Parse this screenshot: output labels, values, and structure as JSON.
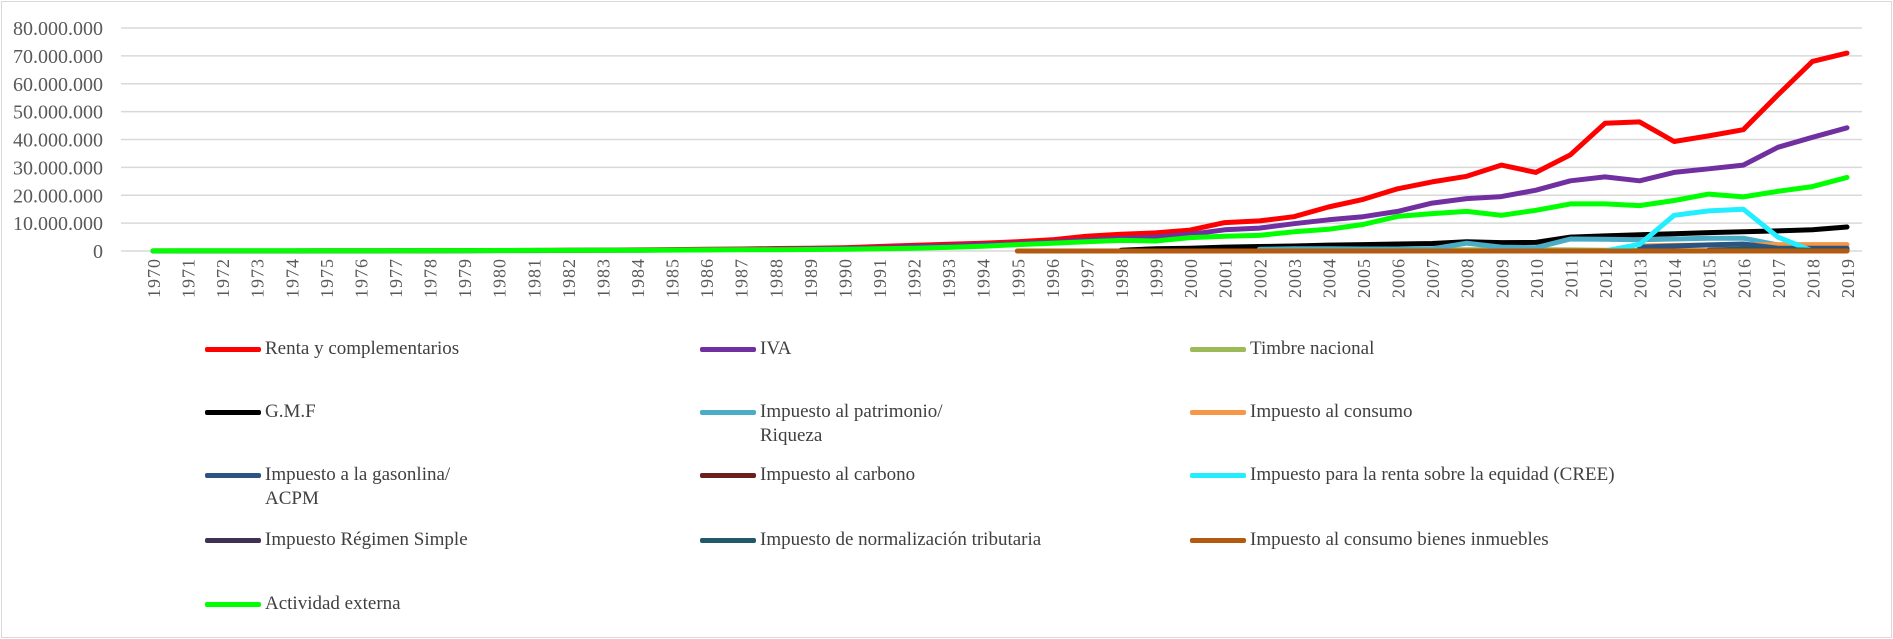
{
  "chart_data": {
    "type": "line",
    "title": "",
    "xlabel": "",
    "ylabel": "",
    "x_start": 1970,
    "x_end": 2019,
    "ylim": [
      0,
      80000000
    ],
    "y_ticks": [
      "0",
      "10.000.000",
      "20.000.000",
      "30.000.000",
      "40.000.000",
      "50.000.000",
      "60.000.000",
      "70.000.000",
      "80.000.000"
    ],
    "grid": "horizontal",
    "legend_position": "bottom",
    "series": [
      {
        "name": "Renta y complementarios",
        "color": "#ff0000",
        "start_year": 1970,
        "values": [
          20000,
          25000,
          30000,
          40000,
          50000,
          60000,
          80000,
          100000,
          120000,
          150000,
          190000,
          230000,
          280000,
          330000,
          400000,
          500000,
          600000,
          700000,
          900000,
          1000000,
          1200000,
          1600000,
          2000000,
          2400000,
          2800000,
          3300000,
          4000000,
          5300000,
          6000000,
          6500000,
          7500000,
          10200000,
          10800000,
          12300000,
          15800000,
          18500000,
          22300000,
          24800000,
          26800000,
          30800000,
          28200000,
          34500000,
          45800000,
          46300000,
          39300000,
          41300000,
          43500000,
          56000000,
          68000000,
          71000000
        ]
      },
      {
        "name": "IVA",
        "color": "#7030a0",
        "start_year": 1970,
        "values": [
          0,
          0,
          0,
          0,
          0,
          20000,
          40000,
          60000,
          80000,
          100000,
          130000,
          160000,
          200000,
          250000,
          300000,
          380000,
          470000,
          560000,
          680000,
          800000,
          900000,
          1200000,
          1500000,
          1900000,
          2300000,
          2700000,
          3200000,
          3900000,
          4500000,
          5000000,
          6000000,
          7600000,
          8200000,
          9800000,
          11200000,
          12300000,
          14200000,
          17200000,
          18800000,
          19500000,
          21800000,
          25200000,
          26600000,
          25200000,
          28200000,
          29500000,
          30800000,
          37200000,
          40800000,
          44200000
        ]
      },
      {
        "name": "Timbre nacional",
        "color": "#9bbb59",
        "start_year": 2000,
        "values": [
          300000,
          300000,
          350000,
          350000,
          400000,
          400000,
          400000,
          450000,
          450000,
          500000,
          500000,
          400000,
          300000,
          200000,
          150000,
          100000,
          100000,
          100000,
          100000,
          100000
        ]
      },
      {
        "name": "G.M.F",
        "color": "#000000",
        "start_year": 1998,
        "values": [
          300000,
          800000,
          1000000,
          1400000,
          1600000,
          1800000,
          2100000,
          2300000,
          2500000,
          2700000,
          3300000,
          3000000,
          3100000,
          5000000,
          5400000,
          5800000,
          6200000,
          6600000,
          6900000,
          7200000,
          7600000,
          8600000
        ]
      },
      {
        "name": "Impuesto al patrimonio/\nRiqueza",
        "color": "#4bacc6",
        "start_year": 2002,
        "values": [
          600000,
          800000,
          800000,
          700000,
          700000,
          800000,
          2800000,
          1400000,
          1200000,
          4300000,
          4200000,
          4000000,
          4300000,
          4600000,
          4600000,
          2200000,
          1200000,
          500000
        ]
      },
      {
        "name": "Impuesto al consumo",
        "color": "#f79646",
        "start_year": 2013,
        "values": [
          1800000,
          2000000,
          2100000,
          2200000,
          2300000,
          2300000,
          2300000
        ]
      },
      {
        "name": "Impuesto a la gasonlina/\nACPM",
        "color": "#2b5482",
        "start_year": 2013,
        "values": [
          1400000,
          1800000,
          2200000,
          2500000,
          1000000,
          1000000,
          1000000
        ]
      },
      {
        "name": "Impuesto al carbono",
        "color": "#6b1f1a",
        "start_year": 2017,
        "values": [
          150000,
          200000,
          200000
        ]
      },
      {
        "name": "Impuesto para la renta sobre la equidad (CREE)",
        "color": "#22eeff",
        "start_year": 2012,
        "values": [
          0,
          2400000,
          12800000,
          14400000,
          15000000,
          5000000,
          0
        ]
      },
      {
        "name": "Impuesto Régimen Simple",
        "color": "#403152",
        "start_year": 2018,
        "values": [
          0,
          200000
        ]
      },
      {
        "name": "Impuesto de normalización tributaria",
        "color": "#215968",
        "start_year": 2015,
        "values": [
          300000,
          700000,
          500000,
          300000,
          200000
        ]
      },
      {
        "name": "Impuesto al consumo bienes inmuebles",
        "color": "#b35a10",
        "start_year": 1995,
        "values": [
          0,
          0,
          0,
          0,
          0,
          0,
          0,
          0,
          0,
          0,
          0,
          0,
          0,
          0,
          0,
          0,
          0,
          0,
          0,
          0,
          0,
          0,
          0,
          0,
          0
        ]
      },
      {
        "name": "Actividad externa",
        "color": "#00ff00",
        "start_year": 1970,
        "values": [
          50000,
          60000,
          70000,
          80000,
          90000,
          100000,
          110000,
          120000,
          140000,
          160000,
          180000,
          200000,
          230000,
          260000,
          300000,
          340000,
          380000,
          420000,
          480000,
          540000,
          600000,
          800000,
          1000000,
          1300000,
          1700000,
          2300000,
          2800000,
          3300000,
          3800000,
          3600000,
          4800000,
          5300000,
          5600000,
          6900000,
          7800000,
          9500000,
          12400000,
          13400000,
          14200000,
          12800000,
          14600000,
          16900000,
          16900000,
          16300000,
          18100000,
          20400000,
          19400000,
          21400000,
          23100000,
          26400000
        ]
      }
    ]
  }
}
